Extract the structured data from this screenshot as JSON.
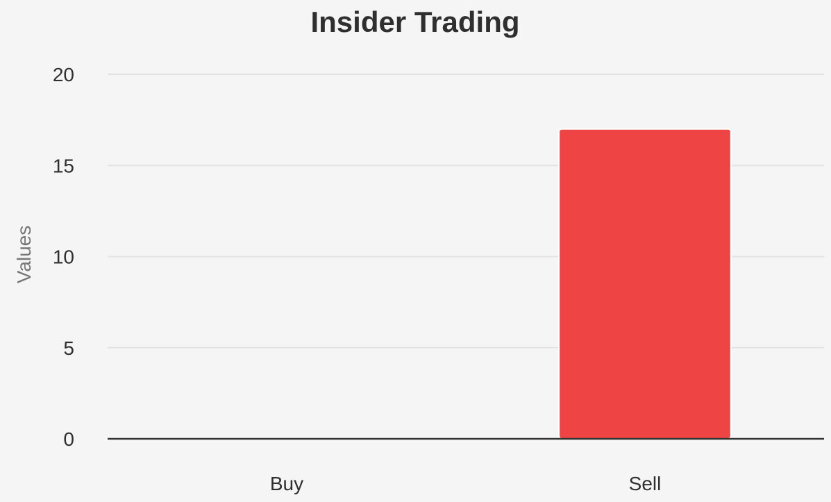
{
  "chart_data": {
    "type": "bar",
    "title": "Insider Trading",
    "ylabel": "Values",
    "xlabel": "",
    "categories": [
      "Buy",
      "Sell"
    ],
    "values": [
      0,
      17
    ],
    "ylim": [
      0,
      20
    ],
    "yticks": [
      0,
      5,
      10,
      15,
      20
    ],
    "bar_color": "#ef4444",
    "grid": true,
    "legend": "none"
  }
}
